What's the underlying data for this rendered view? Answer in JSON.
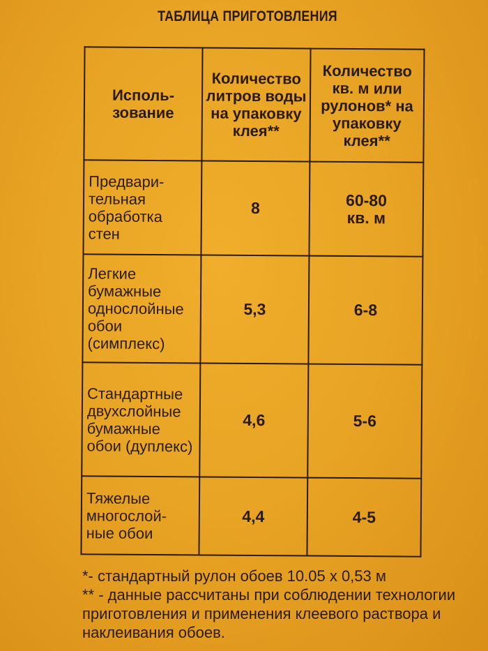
{
  "title": "ТАБЛИЦА ПРИГОТОВЛЕНИЯ",
  "headers": [
    "Исполь-\nзование",
    "Количество литров воды на упаковку клея**",
    "Количество кв. м или рулонов* на упаковку клея**"
  ],
  "rows": [
    {
      "use": "Предвари-тельная обработка стен",
      "water": "8",
      "area": "60-80\nкв. м"
    },
    {
      "use": "Легкие бумажные однослойные обои (симплекс)",
      "water": "5,3",
      "area": "6-8"
    },
    {
      "use": "Стандартные двухслойные бумажные обои (дуплекс)",
      "water": "4,6",
      "area": "5-6"
    },
    {
      "use": "Тяжелые многослой-ные обои",
      "water": "4,4",
      "area": "4-5"
    }
  ],
  "notes": [
    "*- стандартный рулон обоев 10.05 х 0,53 м",
    "** - данные рассчитаны при соблюдении технологии приготовления и применения клеевого раствора и наклеивания обоев."
  ]
}
